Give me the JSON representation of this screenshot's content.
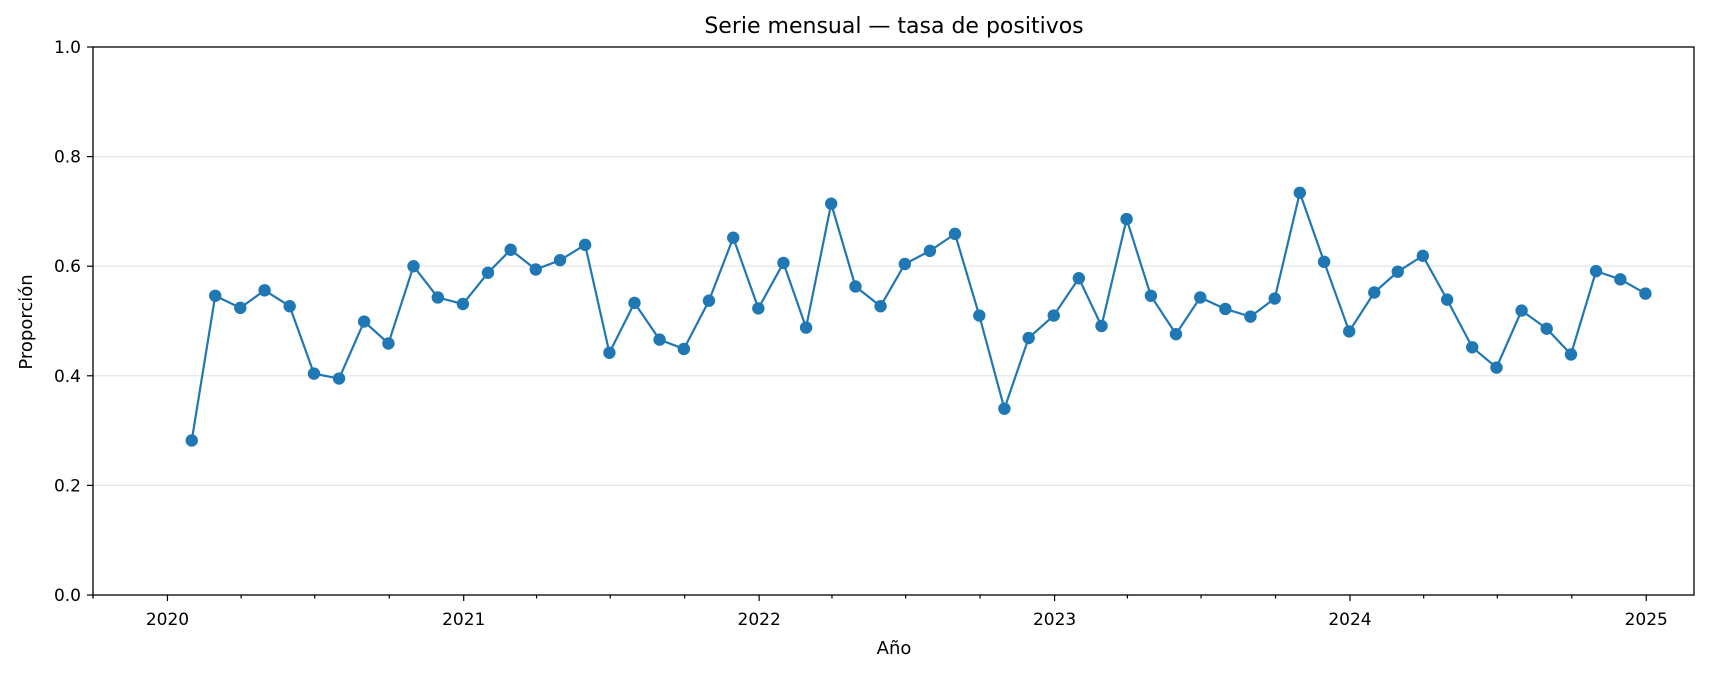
{
  "chart_data": {
    "type": "line",
    "title": "Serie mensual — tasa de positivos",
    "xlabel": "Año",
    "ylabel": "Proporción",
    "ylim": [
      0,
      1
    ],
    "xlim": [
      "2019-10-01",
      "2025-03-01"
    ],
    "grid": "y-only",
    "y_ticks": [
      0.0,
      0.2,
      0.4,
      0.6,
      0.8,
      1.0
    ],
    "y_tick_labels": [
      "0.0",
      "0.2",
      "0.4",
      "0.6",
      "0.8",
      "1.0"
    ],
    "x_ticks": [
      "2020-01-01",
      "2021-01-01",
      "2022-01-01",
      "2023-01-01",
      "2024-01-01",
      "2025-01-01"
    ],
    "x_tick_labels": [
      "2020",
      "2021",
      "2022",
      "2023",
      "2024",
      "2025"
    ],
    "color": "#1f77b4",
    "series": [
      {
        "x": [
          "2020-01-31",
          "2020-02-29",
          "2020-03-31",
          "2020-04-30",
          "2020-05-31",
          "2020-06-30",
          "2020-07-31",
          "2020-08-31",
          "2020-09-30",
          "2020-10-31",
          "2020-11-30",
          "2020-12-31",
          "2021-01-31",
          "2021-02-28",
          "2021-03-31",
          "2021-04-30",
          "2021-05-31",
          "2021-06-30",
          "2021-07-31",
          "2021-08-31",
          "2021-09-30",
          "2021-10-31",
          "2021-11-30",
          "2021-12-31",
          "2022-01-31",
          "2022-02-28",
          "2022-03-31",
          "2022-04-30",
          "2022-05-31",
          "2022-06-30",
          "2022-07-31",
          "2022-08-31",
          "2022-09-30",
          "2022-10-31",
          "2022-11-30",
          "2022-12-31",
          "2023-01-31",
          "2023-02-28",
          "2023-03-31",
          "2023-04-30",
          "2023-05-31",
          "2023-06-30",
          "2023-07-31",
          "2023-08-31",
          "2023-09-30",
          "2023-10-31",
          "2023-11-30",
          "2023-12-31",
          "2024-01-31",
          "2024-02-29",
          "2024-03-31",
          "2024-04-30",
          "2024-05-31",
          "2024-06-30",
          "2024-07-31",
          "2024-08-31",
          "2024-09-30",
          "2024-10-31",
          "2024-11-30",
          "2024-12-31"
        ],
        "values": [
          0.282,
          0.546,
          0.524,
          0.556,
          0.527,
          0.404,
          0.395,
          0.499,
          0.459,
          0.6,
          0.543,
          0.531,
          0.588,
          0.63,
          0.594,
          0.611,
          0.639,
          0.442,
          0.533,
          0.466,
          0.449,
          0.537,
          0.652,
          0.523,
          0.606,
          0.488,
          0.714,
          0.563,
          0.527,
          0.604,
          0.628,
          0.659,
          0.51,
          0.34,
          0.469,
          0.51,
          0.578,
          0.491,
          0.686,
          0.546,
          0.476,
          0.543,
          0.522,
          0.508,
          0.541,
          0.734,
          0.608,
          0.481,
          0.552,
          0.59,
          0.619,
          0.539,
          0.452,
          0.415,
          0.519,
          0.486,
          0.439,
          0.591,
          0.576,
          0.55
        ]
      }
    ]
  }
}
